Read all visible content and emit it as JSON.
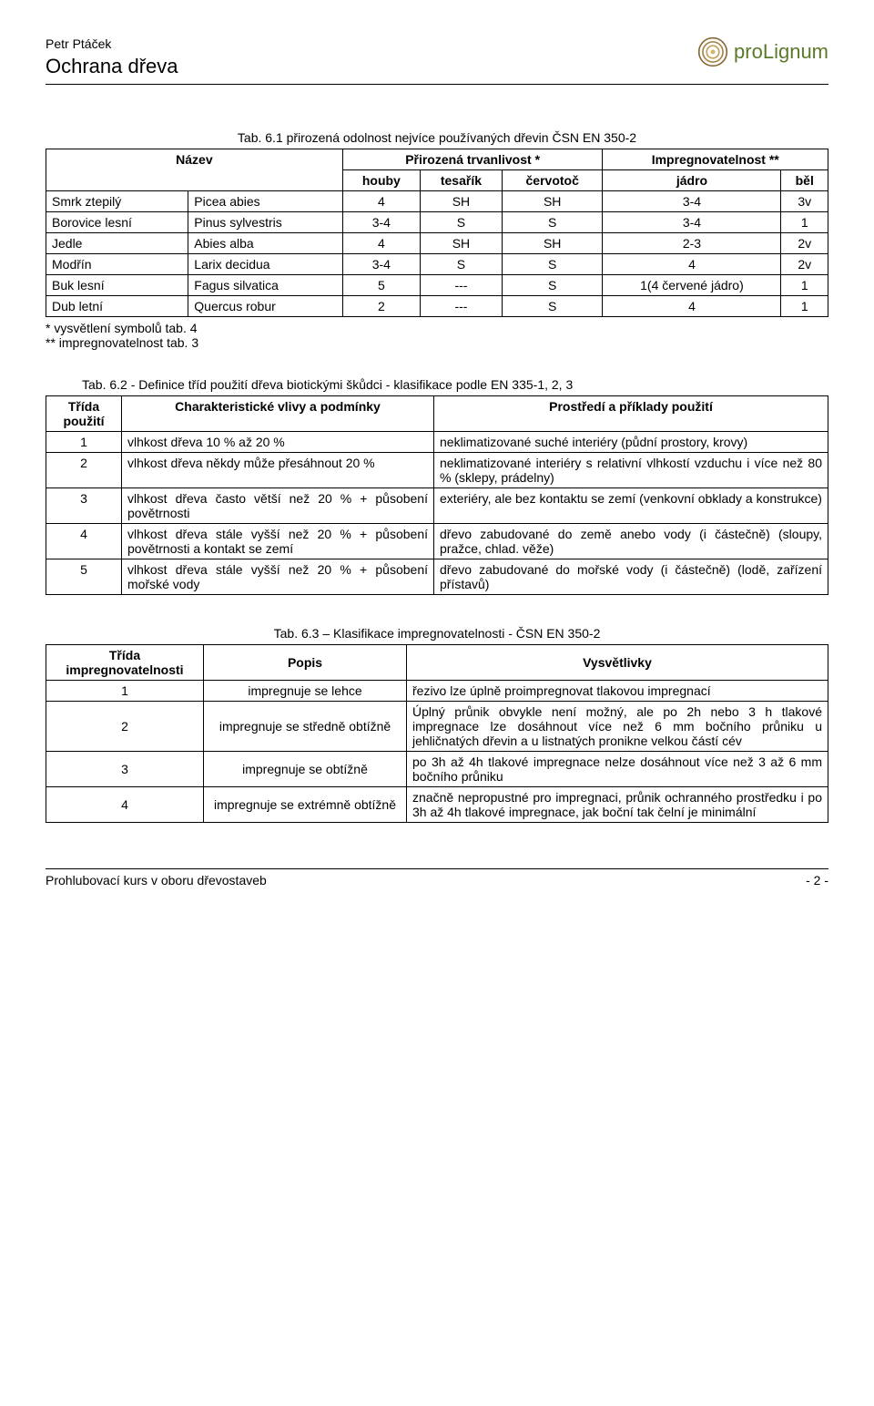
{
  "header": {
    "author": "Petr Ptáček",
    "title": "Ochrana dřeva",
    "logo_text": "proLignum"
  },
  "table1": {
    "caption": "Tab. 6.1 přirozená odolnost nejvíce používaných dřevin ČSN EN 350-2",
    "headers": {
      "name": "Název",
      "durability": "Přirozená trvanlivost *",
      "impreg": "Impregnovatelnost **",
      "h_houby": "houby",
      "h_tesarik": "tesařík",
      "h_cervotoc": "červotoč",
      "h_jadro": "jádro",
      "h_bel": "běl"
    },
    "rows": [
      {
        "cz": "Smrk ztepilý",
        "lat": "Picea abies",
        "houby": "4",
        "tesarik": "SH",
        "cervotoc": "SH",
        "jadro": "3-4",
        "bel": "3v"
      },
      {
        "cz": "Borovice lesní",
        "lat": "Pinus sylvestris",
        "houby": "3-4",
        "tesarik": "S",
        "cervotoc": "S",
        "jadro": "3-4",
        "bel": "1"
      },
      {
        "cz": "Jedle",
        "lat": "Abies alba",
        "houby": "4",
        "tesarik": "SH",
        "cervotoc": "SH",
        "jadro": "2-3",
        "bel": "2v"
      },
      {
        "cz": "Modřín",
        "lat": "Larix decidua",
        "houby": "3-4",
        "tesarik": "S",
        "cervotoc": "S",
        "jadro": "4",
        "bel": "2v"
      },
      {
        "cz": "Buk lesní",
        "lat": "Fagus silvatica",
        "houby": "5",
        "tesarik": "---",
        "cervotoc": "S",
        "jadro": "1(4 červené jádro)",
        "bel": "1"
      },
      {
        "cz": "Dub letní",
        "lat": "Quercus robur",
        "houby": "2",
        "tesarik": "---",
        "cervotoc": "S",
        "jadro": "4",
        "bel": "1"
      }
    ],
    "note1": "* vysvětlení symbolů tab. 4",
    "note2": "** impregnovatelnost tab. 3"
  },
  "table2": {
    "caption": "Tab. 6.2 - Definice tříd použití dřeva biotickými škůdci - klasifikace podle EN 335-1, 2, 3",
    "headers": {
      "class": "Třída použití",
      "cond": "Charakteristické vlivy  a podmínky",
      "env": "Prostředí a příklady použití"
    },
    "rows": [
      {
        "n": "1",
        "c": "vlhkost dřeva 10 % až 20 %",
        "e": "neklimatizované suché interiéry (půdní prostory, krovy)"
      },
      {
        "n": "2",
        "c": "vlhkost dřeva někdy může přesáhnout 20 %",
        "e": "neklimatizované interiéry s relativní vlhkostí vzduchu i více než 80 % (sklepy, prádelny)"
      },
      {
        "n": "3",
        "c": "vlhkost dřeva často větší než  20 % + působení povětrnosti",
        "e": "exteriéry, ale bez kontaktu se zemí (venkovní obklady  a konstrukce)"
      },
      {
        "n": "4",
        "c": "vlhkost dřeva stále vyšší než 20 % + působení povětrnosti a kontakt se zemí",
        "e": "dřevo zabudované do země anebo vody (i částečně) (sloupy, pražce, chlad. věže)"
      },
      {
        "n": "5",
        "c": "vlhkost dřeva stále vyšší než 20 % + působení mořské vody",
        "e": "dřevo zabudované do mořské vody (i částečně) (lodě, zařízení přístavů)"
      }
    ]
  },
  "table3": {
    "caption": "Tab. 6.3 – Klasifikace impregnovatelnosti  - ČSN EN 350-2",
    "headers": {
      "class": "Třída impregnovatelnosti",
      "desc": "Popis",
      "expl": "Vysvětlivky"
    },
    "rows": [
      {
        "n": "1",
        "d": "impregnuje se lehce",
        "e": "řezivo lze úplně proimpregnovat tlakovou impregnací"
      },
      {
        "n": "2",
        "d": "impregnuje se středně obtížně",
        "e": "Úplný průnik obvykle není možný, ale po 2h nebo 3 h tlakové impregnace lze dosáhnout více než 6 mm bočního průniku u jehličnatých dřevin a u listnatých pronikne velkou částí cév"
      },
      {
        "n": "3",
        "d": "impregnuje se obtížně",
        "e": "po 3h až 4h tlakové impregnace nelze dosáhnout více než 3 až 6 mm bočního průniku"
      },
      {
        "n": "4",
        "d": "impregnuje se extrémně obtížně",
        "e": "značně nepropustné pro impregnaci, průnik ochranného prostředku i po 3h až 4h tlakové impregnace, jak boční tak čelní je minimální"
      }
    ]
  },
  "footer": {
    "left": "Prohlubovací kurs v oboru dřevostaveb",
    "right": "- 2 -"
  }
}
